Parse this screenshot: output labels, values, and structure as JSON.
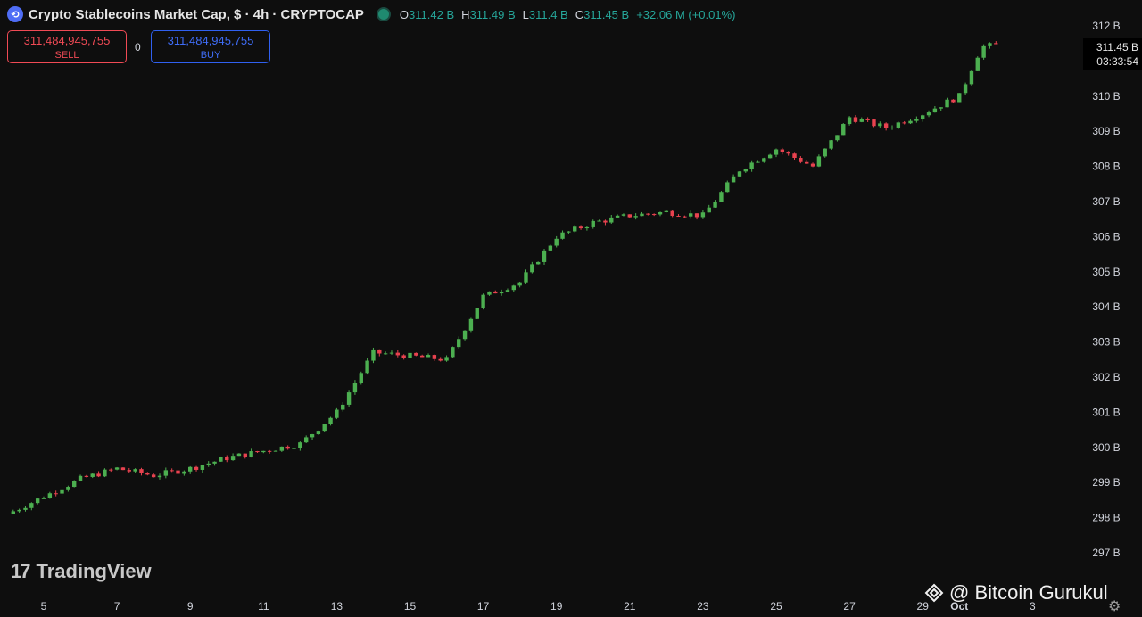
{
  "header": {
    "icon_glyph": "⟲",
    "title": "Crypto Stablecoins Market Cap, $ · 4h · CRYPTOCAP",
    "ohlc": [
      {
        "key": "O",
        "value": "311.42 B"
      },
      {
        "key": "H",
        "value": "311.49 B"
      },
      {
        "key": "L",
        "value": "311.4 B"
      },
      {
        "key": "C",
        "value": "311.45 B"
      }
    ],
    "change": "+32.06 M (+0.01%)"
  },
  "trade": {
    "sell_price": "311,484,945,755",
    "sell_label": "SELL",
    "spread": "0",
    "buy_price": "311,484,945,755",
    "buy_label": "BUY"
  },
  "price_tag": {
    "price": "311.45 B",
    "countdown": "03:33:54"
  },
  "branding": {
    "logo_mark": "17",
    "logo_text": "TradingView",
    "watermark": "@ Bitcoin Gurukul",
    "watermark_icon": "diamond-grid-icon"
  },
  "colors": {
    "up": "#4caf50",
    "down": "#e8424f",
    "background": "#0e0e0e",
    "axis_text": "#d1d4dc"
  },
  "chart_data": {
    "type": "candlestick",
    "title": "Crypto Stablecoins Market Cap, $ · 4h · CRYPTOCAP",
    "timeframe": "4h",
    "ylim": [
      296.5,
      312.3
    ],
    "y_ticks": [
      {
        "value": 297,
        "label": "297 B"
      },
      {
        "value": 298,
        "label": "298 B"
      },
      {
        "value": 299,
        "label": "299 B"
      },
      {
        "value": 300,
        "label": "300 B"
      },
      {
        "value": 301,
        "label": "301 B"
      },
      {
        "value": 302,
        "label": "302 B"
      },
      {
        "value": 303,
        "label": "303 B"
      },
      {
        "value": 304,
        "label": "304 B"
      },
      {
        "value": 305,
        "label": "305 B"
      },
      {
        "value": 306,
        "label": "306 B"
      },
      {
        "value": 307,
        "label": "307 B"
      },
      {
        "value": 308,
        "label": "308 B"
      },
      {
        "value": 309,
        "label": "309 B"
      },
      {
        "value": 310,
        "label": "310 B"
      },
      {
        "value": 311,
        "label": "311 B"
      },
      {
        "value": 312,
        "label": "312 B"
      }
    ],
    "x_ticks": [
      {
        "t": 4,
        "label": "5"
      },
      {
        "t": 6,
        "label": "7"
      },
      {
        "t": 8,
        "label": "9"
      },
      {
        "t": 10,
        "label": "11"
      },
      {
        "t": 12,
        "label": "13"
      },
      {
        "t": 14,
        "label": "15"
      },
      {
        "t": 16,
        "label": "17"
      },
      {
        "t": 18,
        "label": "19"
      },
      {
        "t": 20,
        "label": "21"
      },
      {
        "t": 22,
        "label": "23"
      },
      {
        "t": 24,
        "label": "25"
      },
      {
        "t": 26,
        "label": "27"
      },
      {
        "t": 28,
        "label": "29"
      },
      {
        "t": 29,
        "label": "Oct"
      },
      {
        "t": 31,
        "label": "3"
      }
    ],
    "x_range_days": [
      3.0,
      31.0
    ],
    "key_levels": [
      {
        "t": 3.0,
        "close": 298.1
      },
      {
        "t": 4.0,
        "close": 298.6
      },
      {
        "t": 5.0,
        "close": 299.1
      },
      {
        "t": 6.0,
        "close": 299.4
      },
      {
        "t": 7.0,
        "close": 299.2
      },
      {
        "t": 8.0,
        "close": 299.4
      },
      {
        "t": 9.0,
        "close": 299.7
      },
      {
        "t": 10.0,
        "close": 299.9
      },
      {
        "t": 11.0,
        "close": 300.1
      },
      {
        "t": 12.0,
        "close": 301.0
      },
      {
        "t": 13.0,
        "close": 302.7
      },
      {
        "t": 14.0,
        "close": 302.6
      },
      {
        "t": 15.0,
        "close": 302.5
      },
      {
        "t": 16.0,
        "close": 304.3
      },
      {
        "t": 17.0,
        "close": 304.7
      },
      {
        "t": 18.0,
        "close": 306.0
      },
      {
        "t": 19.0,
        "close": 306.4
      },
      {
        "t": 20.0,
        "close": 306.6
      },
      {
        "t": 21.0,
        "close": 306.7
      },
      {
        "t": 22.0,
        "close": 306.6
      },
      {
        "t": 23.0,
        "close": 307.9
      },
      {
        "t": 24.0,
        "close": 308.5
      },
      {
        "t": 25.0,
        "close": 308.0
      },
      {
        "t": 26.0,
        "close": 309.4
      },
      {
        "t": 27.0,
        "close": 309.1
      },
      {
        "t": 28.0,
        "close": 309.5
      },
      {
        "t": 29.0,
        "close": 310.0
      },
      {
        "t": 29.6,
        "close": 311.4
      },
      {
        "t": 30.0,
        "close": 311.45
      }
    ],
    "last_price": 311.45
  }
}
